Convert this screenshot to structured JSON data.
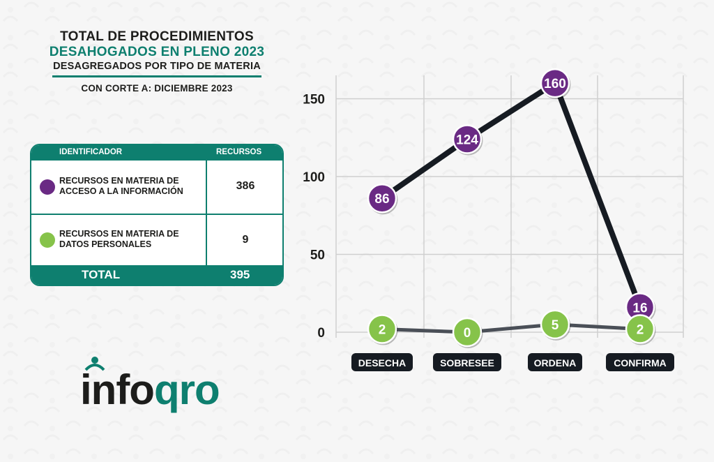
{
  "header": {
    "line1": "TOTAL DE PROCEDIMIENTOS",
    "line2": "DESAHOGADOS EN PLENO 2023",
    "line3": "DESAGREGADOS POR TIPO DE MATERIA",
    "cutoff": "CON CORTE A: DICIEMBRE 2023"
  },
  "table": {
    "col1": "IDENTIFICADOR",
    "col2": "RECURSOS",
    "rows": [
      {
        "label": "RECURSOS EN MATERIA DE ACCESO A LA INFORMACIÓN",
        "value": "386",
        "color": "#6a2a84"
      },
      {
        "label": "RECURSOS EN MATERIA DE DATOS PERSONALES",
        "value": "9",
        "color": "#86c34a"
      }
    ],
    "total_label": "TOTAL",
    "total_value": "395"
  },
  "logo": {
    "part1": "info",
    "part2": "qro"
  },
  "colors": {
    "accent": "#0e7f6f",
    "purple": "#6a2a84",
    "green": "#86c34a",
    "line_dark": "#161b22",
    "line_gray": "#4a4f57"
  },
  "chart_data": {
    "type": "line",
    "categories": [
      "DESECHA",
      "SOBRESEE",
      "ORDENA",
      "CONFIRMA"
    ],
    "series": [
      {
        "values": [
          86,
          124,
          160,
          16
        ],
        "color": "#6a2a84"
      },
      {
        "values": [
          2,
          0,
          5,
          2
        ],
        "color": "#86c34a"
      }
    ],
    "yticks": [
      0,
      50,
      100,
      150
    ],
    "ylim": [
      0,
      165
    ],
    "grid": true
  }
}
